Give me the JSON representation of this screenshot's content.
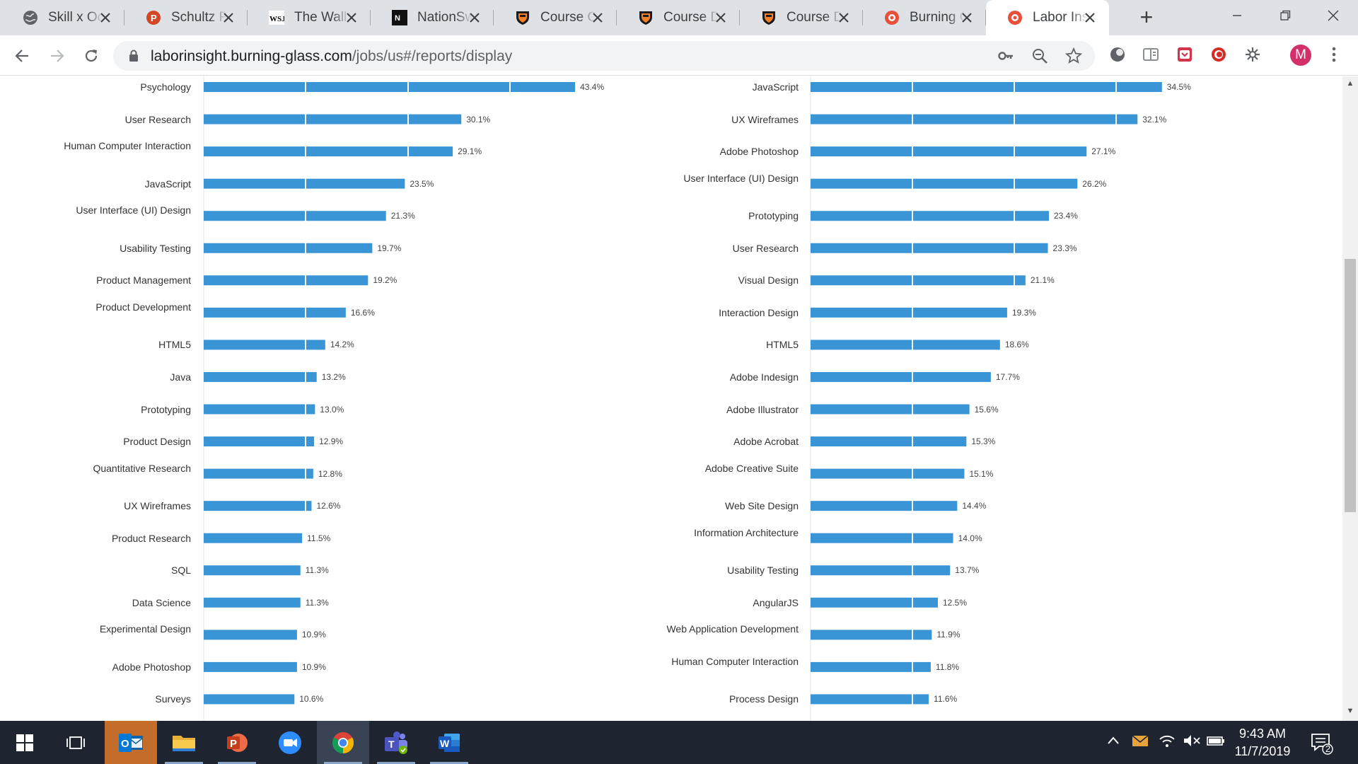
{
  "browser": {
    "tabs": [
      {
        "title": "Skill x Occ",
        "icon": "globe-icon",
        "active": false
      },
      {
        "title": "Schultz Fa",
        "icon": "powerpoint-icon",
        "active": false
      },
      {
        "title": "The Wall S",
        "icon": "wsj-icon",
        "active": false
      },
      {
        "title": "NationSw",
        "icon": "nationswell-icon",
        "active": false
      },
      {
        "title": "Course Of",
        "icon": "princeton-shield-icon",
        "active": false
      },
      {
        "title": "Course De",
        "icon": "princeton-shield-icon",
        "active": false
      },
      {
        "title": "Course De",
        "icon": "princeton-shield-icon",
        "active": false
      },
      {
        "title": "Burning G",
        "icon": "burning-glass-icon",
        "active": false
      },
      {
        "title": "Labor Insi",
        "icon": "burning-glass-icon",
        "active": true
      }
    ],
    "url_host": "laborinsight.burning-glass.com",
    "url_path": "/jobs/us#/reports/display",
    "profile_initial": "M"
  },
  "chart_data": [
    {
      "type": "bar",
      "orientation": "horizontal",
      "categories": [
        "Psychology",
        "User Research",
        "Human Computer Interaction",
        "JavaScript",
        "User Interface (UI) Design",
        "Usability Testing",
        "Product Management",
        "Product Development",
        "HTML5",
        "Java",
        "Prototyping",
        "Product Design",
        "Quantitative Research",
        "UX Wireframes",
        "Product Research",
        "SQL",
        "Data Science",
        "Experimental Design",
        "Adobe Photoshop",
        "Surveys"
      ],
      "values": [
        43.4,
        30.1,
        29.1,
        23.5,
        21.3,
        19.7,
        19.2,
        16.6,
        14.2,
        13.2,
        13.0,
        12.9,
        12.8,
        12.6,
        11.5,
        11.3,
        11.3,
        10.9,
        10.9,
        10.6
      ],
      "labels": [
        "43.4%",
        "30.1%",
        "29.1%",
        "23.5%",
        "21.3%",
        "19.7%",
        "19.2%",
        "16.6%",
        "14.2%",
        "13.2%",
        "13.0%",
        "12.9%",
        "12.8%",
        "12.6%",
        "11.5%",
        "11.3%",
        "11.3%",
        "10.9%",
        "10.9%",
        "10.6%"
      ],
      "bar_color": "#3a95d6",
      "grid": true
    },
    {
      "type": "bar",
      "orientation": "horizontal",
      "categories": [
        "JavaScript",
        "UX Wireframes",
        "Adobe Photoshop",
        "User Interface (UI) Design",
        "Prototyping",
        "User Research",
        "Visual Design",
        "Interaction Design",
        "HTML5",
        "Adobe Indesign",
        "Adobe Illustrator",
        "Adobe Acrobat",
        "Adobe Creative Suite",
        "Web Site Design",
        "Information Architecture",
        "Usability Testing",
        "AngularJS",
        "Web Application Development",
        "Human Computer Interaction",
        "Process Design"
      ],
      "values": [
        34.5,
        32.1,
        27.1,
        26.2,
        23.4,
        23.3,
        21.1,
        19.3,
        18.6,
        17.7,
        15.6,
        15.3,
        15.1,
        14.4,
        14.0,
        13.7,
        12.5,
        11.9,
        11.8,
        11.6
      ],
      "labels": [
        "34.5%",
        "32.1%",
        "27.1%",
        "26.2%",
        "23.4%",
        "23.3%",
        "21.1%",
        "19.3%",
        "18.6%",
        "17.7%",
        "15.6%",
        "15.3%",
        "15.1%",
        "14.4%",
        "14.0%",
        "13.7%",
        "12.5%",
        "11.9%",
        "11.8%",
        "11.6%"
      ],
      "bar_color": "#3a95d6",
      "grid": true
    }
  ],
  "taskbar": {
    "apps": [
      {
        "name": "outlook",
        "icon": "outlook-icon",
        "state": "active"
      },
      {
        "name": "file-explorer",
        "icon": "folder-icon",
        "state": "running"
      },
      {
        "name": "powerpoint",
        "icon": "powerpoint-icon",
        "state": "running"
      },
      {
        "name": "zoom",
        "icon": "zoom-icon",
        "state": "none"
      },
      {
        "name": "chrome",
        "icon": "chrome-icon",
        "state": "focused"
      },
      {
        "name": "teams",
        "icon": "teams-icon",
        "state": "running"
      },
      {
        "name": "word",
        "icon": "word-icon",
        "state": "running"
      }
    ],
    "time": "9:43 AM",
    "date": "11/7/2019",
    "notification_count": "2"
  }
}
